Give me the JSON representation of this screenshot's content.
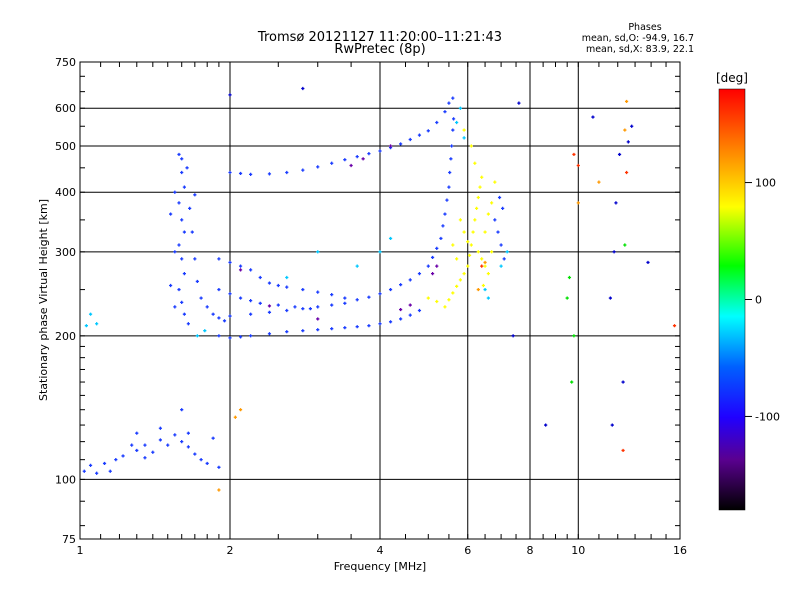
{
  "header": {
    "title": "Tromsø 20121127 11:20:00–11:21:43",
    "subtitle": "RwPretec (8p)",
    "stats_heading": "Phases",
    "stats_o": "mean, sd,O: -94.9, 16.7",
    "stats_x": "mean, sd,X:  83.9, 22.1"
  },
  "chart_data": {
    "type": "scatter",
    "title": "Tromsø 20121127 11:20:00–11:21:43",
    "subtitle": "RwPretec (8p)",
    "xlabel": "Frequency [MHz]",
    "ylabel": "Stationary phase Virtual Height [km]",
    "xscale": "log",
    "yscale": "log",
    "xlim": [
      1,
      16
    ],
    "ylim": [
      75,
      750
    ],
    "xticks": [
      1,
      2,
      4,
      6,
      8,
      10,
      16
    ],
    "xtick_labels": [
      "1",
      "2",
      "4",
      "6",
      "8",
      "10",
      "16"
    ],
    "yticks": [
      75,
      100,
      200,
      300,
      400,
      500,
      600,
      750
    ],
    "ytick_labels": [
      "75",
      "100",
      "200",
      "300",
      "400",
      "500",
      "600",
      "750"
    ],
    "grid": true,
    "colorbar": {
      "label": "[deg]",
      "range": [
        -180,
        180
      ],
      "ticks": [
        100,
        0,
        -100
      ],
      "tick_labels": [
        "100",
        "0",
        "-100"
      ],
      "colors": [
        "#000000",
        "#6a00a8",
        "#0000ff",
        "#00ffff",
        "#00ff00",
        "#ffff00",
        "#ff0000"
      ]
    },
    "series": [
      {
        "color": "#1a3cff",
        "points": [
          [
            1.02,
            104
          ],
          [
            1.05,
            107
          ],
          [
            1.08,
            103
          ],
          [
            1.12,
            108
          ],
          [
            1.15,
            104
          ],
          [
            1.18,
            110
          ],
          [
            1.22,
            112
          ],
          [
            1.27,
            118
          ],
          [
            1.3,
            115
          ],
          [
            1.35,
            111
          ],
          [
            1.4,
            114
          ],
          [
            1.45,
            121
          ],
          [
            1.5,
            118
          ],
          [
            1.55,
            124
          ],
          [
            1.6,
            120
          ],
          [
            1.65,
            117
          ],
          [
            1.7,
            113
          ],
          [
            1.75,
            110
          ],
          [
            1.8,
            108
          ],
          [
            1.3,
            125
          ],
          [
            1.35,
            118
          ],
          [
            1.45,
            128
          ],
          [
            1.6,
            140
          ],
          [
            1.65,
            125
          ],
          [
            1.85,
            122
          ],
          [
            1.9,
            106
          ],
          [
            1.58,
            480
          ],
          [
            1.6,
            440
          ],
          [
            1.62,
            410
          ],
          [
            1.58,
            380
          ],
          [
            1.6,
            350
          ],
          [
            1.62,
            330
          ],
          [
            1.58,
            310
          ],
          [
            1.6,
            290
          ],
          [
            1.62,
            270
          ],
          [
            1.58,
            250
          ],
          [
            1.6,
            235
          ],
          [
            1.62,
            222
          ],
          [
            1.65,
            212
          ],
          [
            1.55,
            400
          ],
          [
            1.52,
            360
          ],
          [
            1.55,
            300
          ],
          [
            1.68,
            330
          ],
          [
            1.7,
            290
          ],
          [
            1.72,
            260
          ],
          [
            1.75,
            240
          ],
          [
            1.8,
            230
          ],
          [
            1.85,
            222
          ],
          [
            1.9,
            218
          ],
          [
            1.95,
            215
          ],
          [
            1.52,
            255
          ],
          [
            1.55,
            230
          ],
          [
            1.66,
            370
          ],
          [
            1.7,
            395
          ],
          [
            1.64,
            450
          ],
          [
            1.6,
            470
          ],
          [
            2.0,
            440
          ],
          [
            2.1,
            438
          ],
          [
            2.2,
            436
          ],
          [
            2.4,
            437
          ],
          [
            2.6,
            440
          ],
          [
            2.8,
            445
          ],
          [
            3.0,
            452
          ],
          [
            3.2,
            460
          ],
          [
            3.4,
            468
          ],
          [
            3.6,
            475
          ],
          [
            3.8,
            482
          ],
          [
            4.0,
            488
          ],
          [
            4.2,
            496
          ],
          [
            4.4,
            505
          ],
          [
            4.6,
            516
          ],
          [
            4.8,
            527
          ],
          [
            5.0,
            538
          ],
          [
            5.2,
            560
          ],
          [
            5.4,
            590
          ],
          [
            5.5,
            615
          ],
          [
            5.6,
            630
          ],
          [
            1.9,
            200
          ],
          [
            2.0,
            198
          ],
          [
            2.1,
            199
          ],
          [
            2.2,
            200
          ],
          [
            2.4,
            202
          ],
          [
            2.6,
            204
          ],
          [
            2.8,
            205
          ],
          [
            3.0,
            206
          ],
          [
            3.2,
            207
          ],
          [
            3.4,
            208
          ],
          [
            3.6,
            209
          ],
          [
            3.8,
            210
          ],
          [
            4.0,
            212
          ],
          [
            4.2,
            214
          ],
          [
            4.4,
            217
          ],
          [
            4.6,
            221
          ],
          [
            4.8,
            226
          ],
          [
            2.0,
            220
          ],
          [
            2.2,
            222
          ],
          [
            2.4,
            224
          ],
          [
            2.6,
            226
          ],
          [
            2.8,
            228
          ],
          [
            3.0,
            230
          ],
          [
            3.2,
            232
          ],
          [
            3.4,
            234
          ],
          [
            3.6,
            238
          ],
          [
            3.8,
            241
          ],
          [
            4.0,
            245
          ],
          [
            4.2,
            250
          ],
          [
            4.4,
            256
          ],
          [
            4.6,
            262
          ],
          [
            4.8,
            270
          ],
          [
            5.0,
            280
          ],
          [
            5.1,
            292
          ],
          [
            5.2,
            305
          ],
          [
            5.3,
            320
          ],
          [
            5.35,
            340
          ],
          [
            5.4,
            360
          ],
          [
            5.45,
            385
          ],
          [
            5.5,
            410
          ],
          [
            5.52,
            440
          ],
          [
            5.55,
            470
          ],
          [
            5.57,
            500
          ],
          [
            5.6,
            540
          ],
          [
            5.62,
            570
          ],
          [
            1.9,
            290
          ],
          [
            2.0,
            285
          ],
          [
            2.1,
            280
          ],
          [
            2.2,
            275
          ],
          [
            2.3,
            265
          ],
          [
            2.4,
            258
          ],
          [
            2.5,
            255
          ],
          [
            2.6,
            253
          ],
          [
            2.8,
            250
          ],
          [
            3.0,
            247
          ],
          [
            3.2,
            244
          ],
          [
            3.4,
            240
          ],
          [
            1.9,
            250
          ],
          [
            2.0,
            245
          ],
          [
            2.1,
            240
          ],
          [
            2.2,
            237
          ],
          [
            2.3,
            234
          ],
          [
            2.5,
            232
          ],
          [
            2.7,
            230
          ],
          [
            2.9,
            228
          ],
          [
            6.8,
            350
          ],
          [
            6.9,
            330
          ],
          [
            7.0,
            310
          ],
          [
            7.1,
            290
          ],
          [
            7.05,
            370
          ],
          [
            6.95,
            390
          ]
        ]
      },
      {
        "color": "#ffff00",
        "points": [
          [
            5.4,
            230
          ],
          [
            5.5,
            238
          ],
          [
            5.6,
            246
          ],
          [
            5.7,
            254
          ],
          [
            5.8,
            262
          ],
          [
            5.9,
            270
          ],
          [
            6.0,
            280
          ],
          [
            6.05,
            295
          ],
          [
            6.1,
            310
          ],
          [
            6.15,
            330
          ],
          [
            6.2,
            350
          ],
          [
            6.25,
            370
          ],
          [
            6.3,
            390
          ],
          [
            6.35,
            410
          ],
          [
            6.4,
            430
          ],
          [
            6.3,
            300
          ],
          [
            6.4,
            290
          ],
          [
            6.5,
            280
          ],
          [
            5.8,
            350
          ],
          [
            5.9,
            330
          ],
          [
            6.0,
            315
          ],
          [
            6.2,
            460
          ],
          [
            6.1,
            500
          ],
          [
            5.9,
            540
          ],
          [
            5.0,
            240
          ],
          [
            5.2,
            236
          ],
          [
            6.6,
            270
          ],
          [
            6.7,
            300
          ],
          [
            6.5,
            330
          ],
          [
            6.6,
            360
          ],
          [
            6.7,
            380
          ],
          [
            6.8,
            420
          ],
          [
            6.45,
            255
          ],
          [
            5.6,
            310
          ],
          [
            5.7,
            290
          ]
        ]
      },
      {
        "color": "#00c8ff",
        "points": [
          [
            1.05,
            222
          ],
          [
            1.08,
            212
          ],
          [
            1.03,
            210
          ],
          [
            1.72,
            200
          ],
          [
            1.78,
            205
          ],
          [
            5.7,
            560
          ],
          [
            5.8,
            600
          ],
          [
            5.9,
            520
          ],
          [
            6.5,
            250
          ],
          [
            6.6,
            240
          ],
          [
            7.0,
            280
          ],
          [
            7.2,
            300
          ],
          [
            4.0,
            300
          ],
          [
            4.2,
            320
          ],
          [
            3.6,
            280
          ],
          [
            3.0,
            300
          ],
          [
            2.6,
            265
          ]
        ]
      },
      {
        "color": "#6a00a8",
        "points": [
          [
            3.5,
            455
          ],
          [
            3.7,
            470
          ],
          [
            4.2,
            500
          ],
          [
            3.0,
            217
          ],
          [
            4.4,
            227
          ],
          [
            4.6,
            232
          ],
          [
            5.1,
            270
          ],
          [
            5.2,
            280
          ],
          [
            2.4,
            231
          ],
          [
            2.1,
            275
          ]
        ]
      },
      {
        "color": "#ff3300",
        "points": [
          [
            9.8,
            480
          ],
          [
            10.0,
            455
          ],
          [
            12.5,
            440
          ],
          [
            12.3,
            115
          ],
          [
            15.6,
            210
          ],
          [
            6.4,
            280
          ]
        ]
      },
      {
        "color": "#ff9900",
        "points": [
          [
            1.9,
            95
          ],
          [
            2.05,
            135
          ],
          [
            2.1,
            140
          ],
          [
            6.3,
            250
          ],
          [
            6.5,
            285
          ],
          [
            10.0,
            380
          ],
          [
            12.5,
            620
          ],
          [
            12.4,
            540
          ],
          [
            11.0,
            420
          ]
        ]
      },
      {
        "color": "#00e000",
        "points": [
          [
            9.5,
            240
          ],
          [
            9.6,
            265
          ],
          [
            9.8,
            200
          ],
          [
            9.7,
            160
          ],
          [
            12.4,
            310
          ]
        ]
      },
      {
        "color": "#0000cc",
        "points": [
          [
            12.3,
            160
          ],
          [
            12.6,
            510
          ],
          [
            12.8,
            550
          ],
          [
            12.1,
            480
          ],
          [
            11.8,
            300
          ],
          [
            11.6,
            240
          ],
          [
            11.9,
            380
          ],
          [
            13.8,
            285
          ],
          [
            10.7,
            575
          ],
          [
            7.4,
            200
          ],
          [
            7.6,
            615
          ],
          [
            2.8,
            660
          ],
          [
            2.0,
            640
          ],
          [
            8.6,
            130
          ],
          [
            11.7,
            130
          ]
        ]
      }
    ]
  }
}
